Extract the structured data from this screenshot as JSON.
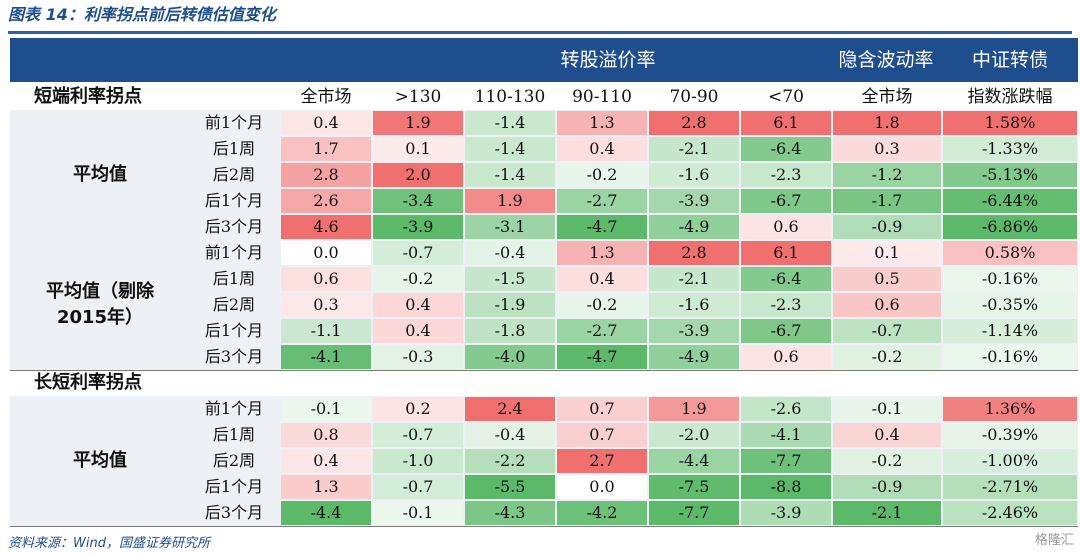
{
  "figure_title": "图表 14：利率拐点前后转债估值变化",
  "header": {
    "group_convertible_premium": "转股溢价率",
    "group_implied_vol": "隐含波动率",
    "group_csi_cb": "中证转债"
  },
  "columns": [
    "全市场",
    ">130",
    "110-130",
    "90-110",
    "70-90",
    "<70",
    "全市场",
    "指数涨跌幅"
  ],
  "sections": [
    {
      "label": "短端利率拐点",
      "groups": [
        {
          "label_lines": [
            "平均值"
          ],
          "rows": [
            {
              "label": "前1个月",
              "values": [
                "0.4",
                "1.9",
                "-1.4",
                "1.3",
                "2.8",
                "6.1",
                "1.8",
                "1.58%"
              ]
            },
            {
              "label": "后1周",
              "values": [
                "1.7",
                "0.1",
                "-1.4",
                "0.4",
                "-2.1",
                "-6.4",
                "0.3",
                "-1.33%"
              ]
            },
            {
              "label": "后2周",
              "values": [
                "2.8",
                "2.0",
                "-1.4",
                "-0.2",
                "-1.6",
                "-2.3",
                "-1.2",
                "-5.13%"
              ]
            },
            {
              "label": "后1个月",
              "values": [
                "2.6",
                "-3.4",
                "1.9",
                "-2.7",
                "-3.9",
                "-6.7",
                "-1.7",
                "-6.44%"
              ]
            },
            {
              "label": "后3个月",
              "values": [
                "4.6",
                "-3.9",
                "-3.1",
                "-4.7",
                "-4.9",
                "0.6",
                "-0.9",
                "-6.86%"
              ]
            }
          ]
        },
        {
          "label_lines": [
            "平均值（剔除",
            "2015年）"
          ],
          "rows": [
            {
              "label": "前1个月",
              "values": [
                "0.0",
                "-0.7",
                "-0.4",
                "1.3",
                "2.8",
                "6.1",
                "0.1",
                "0.58%"
              ]
            },
            {
              "label": "后1周",
              "values": [
                "0.6",
                "-0.2",
                "-1.5",
                "0.4",
                "-2.1",
                "-6.4",
                "0.5",
                "-0.16%"
              ]
            },
            {
              "label": "后2周",
              "values": [
                "0.3",
                "0.4",
                "-1.9",
                "-0.2",
                "-1.6",
                "-2.3",
                "0.6",
                "-0.35%"
              ]
            },
            {
              "label": "后1个月",
              "values": [
                "-1.1",
                "0.4",
                "-1.8",
                "-2.7",
                "-3.9",
                "-6.7",
                "-0.7",
                "-1.14%"
              ]
            },
            {
              "label": "后3个月",
              "values": [
                "-4.1",
                "-0.3",
                "-4.0",
                "-4.7",
                "-4.9",
                "0.6",
                "-0.2",
                "-0.16%"
              ]
            }
          ]
        }
      ]
    },
    {
      "label": "长短利率拐点",
      "groups": [
        {
          "label_lines": [
            "平均值"
          ],
          "rows": [
            {
              "label": "前1个月",
              "values": [
                "-0.1",
                "0.2",
                "2.4",
                "0.7",
                "1.9",
                "-2.6",
                "-0.1",
                "1.36%"
              ]
            },
            {
              "label": "后1周",
              "values": [
                "0.8",
                "-0.7",
                "-0.4",
                "0.7",
                "-2.0",
                "-4.1",
                "0.4",
                "-0.39%"
              ]
            },
            {
              "label": "后2周",
              "values": [
                "0.4",
                "-1.0",
                "-2.2",
                "2.7",
                "-4.4",
                "-7.7",
                "-0.2",
                "-1.00%"
              ]
            },
            {
              "label": "后1个月",
              "values": [
                "1.3",
                "-0.7",
                "-5.5",
                "0.0",
                "-7.5",
                "-8.8",
                "-0.9",
                "-2.71%"
              ]
            },
            {
              "label": "后3个月",
              "values": [
                "-4.4",
                "-0.1",
                "-4.3",
                "-4.2",
                "-7.7",
                "-3.9",
                "-2.1",
                "-2.46%"
              ]
            }
          ]
        }
      ]
    }
  ],
  "colors": {
    "header_bg": "#1f4e8f",
    "title_color": "#1f4e8f",
    "positive_max": "#f07070",
    "negative_max": "#5cb96a",
    "neutral": "#ffffff"
  },
  "source": "资料来源：Wind，国盛证券研究所",
  "watermark": "格隆汇"
}
